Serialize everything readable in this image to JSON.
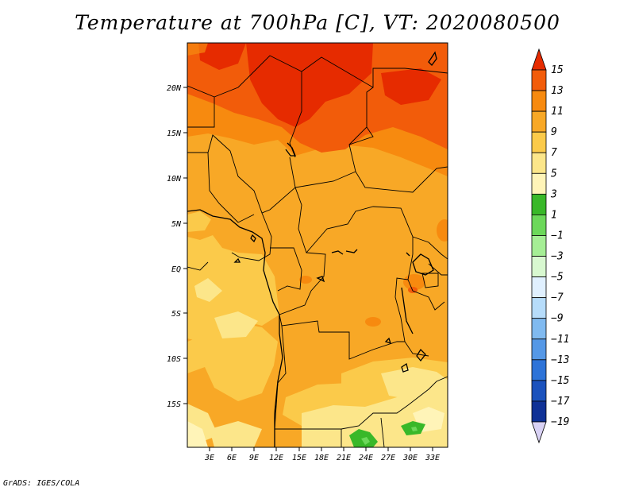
{
  "title": "Temperature at 700hPa [C], VT: 2020080500",
  "credit": "GrADS: IGES/COLA",
  "map": {
    "lat_labels": [
      "20N",
      "15N",
      "10N",
      "5N",
      "EQ",
      "5S",
      "10S",
      "15S"
    ],
    "lon_labels": [
      "3E",
      "6E",
      "9E",
      "12E",
      "15E",
      "18E",
      "21E",
      "24E",
      "27E",
      "30E",
      "33E"
    ],
    "lon_range": [
      0,
      35
    ],
    "lat_range": [
      -20,
      24.5
    ]
  },
  "colorbar": {
    "labels": [
      "15",
      "13",
      "11",
      "9",
      "7",
      "5",
      "3",
      "1",
      "−1",
      "−3",
      "−5",
      "−7",
      "−9",
      "−11",
      "−13",
      "−15",
      "−17",
      "−19"
    ],
    "colors_top_to_bottom": [
      "#e62b00",
      "#f25c0a",
      "#f78a0f",
      "#f8a826",
      "#fbca4a",
      "#fce68a",
      "#fff4b8",
      "#39b829",
      "#6cd85a",
      "#a5ee95",
      "#d8f8d0",
      "#e0f0ff",
      "#b6dcfa",
      "#80baf0",
      "#5598e6",
      "#2d73d8",
      "#1b52bd",
      "#0f3196",
      "#0a1468",
      "#d9d2f5"
    ]
  }
}
